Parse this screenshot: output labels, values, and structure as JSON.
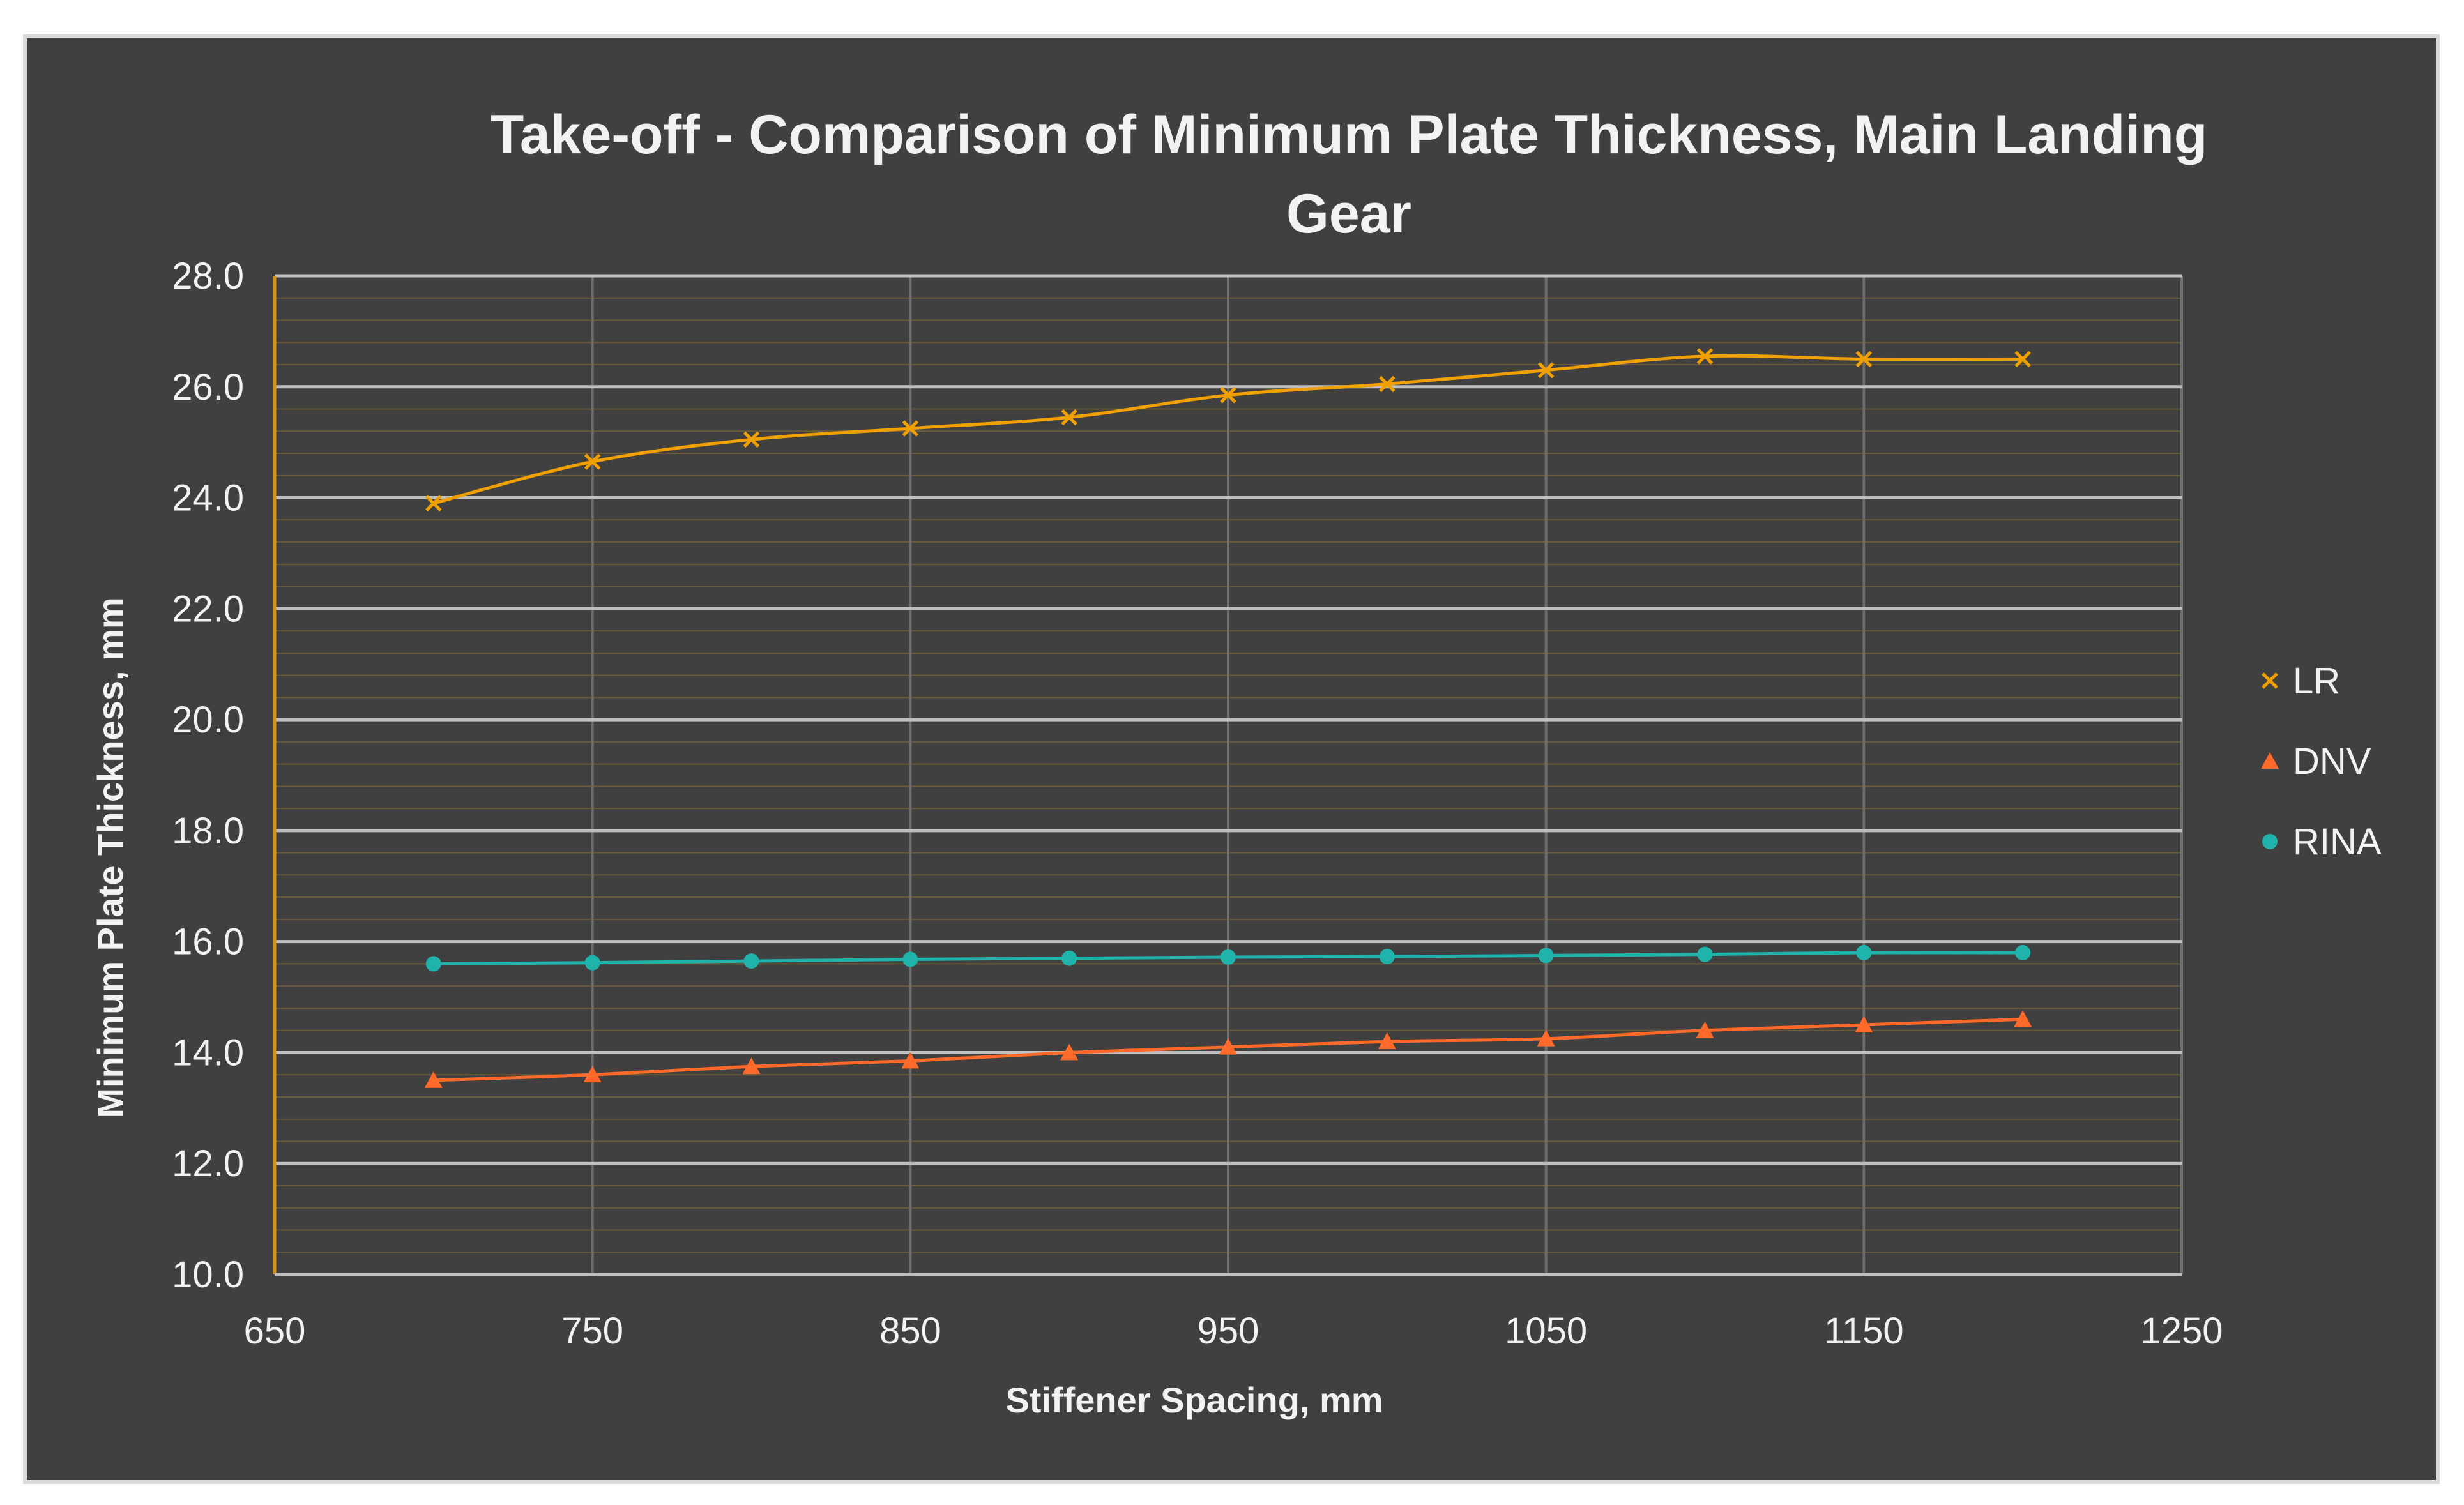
{
  "chart_data": {
    "type": "scatter",
    "title": [
      "Take-off - Comparison of Minimum Plate Thickness, Main Landing",
      "Gear"
    ],
    "xlabel": "Stiffener Spacing, mm",
    "ylabel": "Minimum Plate Thickness, mm",
    "xlim": [
      650,
      1250
    ],
    "ylim": [
      10.0,
      28.0
    ],
    "x_ticks": [
      "650",
      "750",
      "850",
      "950",
      "1050",
      "1150",
      "1250"
    ],
    "y_ticks": [
      "10.0",
      "12.0",
      "14.0",
      "16.0",
      "18.0",
      "20.0",
      "22.0",
      "24.0",
      "26.0",
      "28.0"
    ],
    "x": [
      700,
      750,
      800,
      850,
      900,
      950,
      1000,
      1050,
      1100,
      1150,
      1200
    ],
    "series": [
      {
        "name": "LR",
        "marker": "x",
        "color": "#f0a000",
        "values": [
          23.9,
          24.65,
          25.05,
          25.25,
          25.45,
          25.85,
          26.05,
          26.3,
          26.55,
          26.5,
          26.5
        ]
      },
      {
        "name": "DNV",
        "marker": "triangle",
        "color": "#ff6a2a",
        "values": [
          13.5,
          13.6,
          13.75,
          13.85,
          14.0,
          14.1,
          14.2,
          14.25,
          14.4,
          14.5,
          14.6
        ]
      },
      {
        "name": "RINA",
        "marker": "circle",
        "color": "#1fb3ac",
        "values": [
          15.6,
          15.62,
          15.65,
          15.68,
          15.7,
          15.72,
          15.73,
          15.75,
          15.77,
          15.8,
          15.8
        ]
      }
    ],
    "grid": true,
    "legend_position": "right"
  }
}
